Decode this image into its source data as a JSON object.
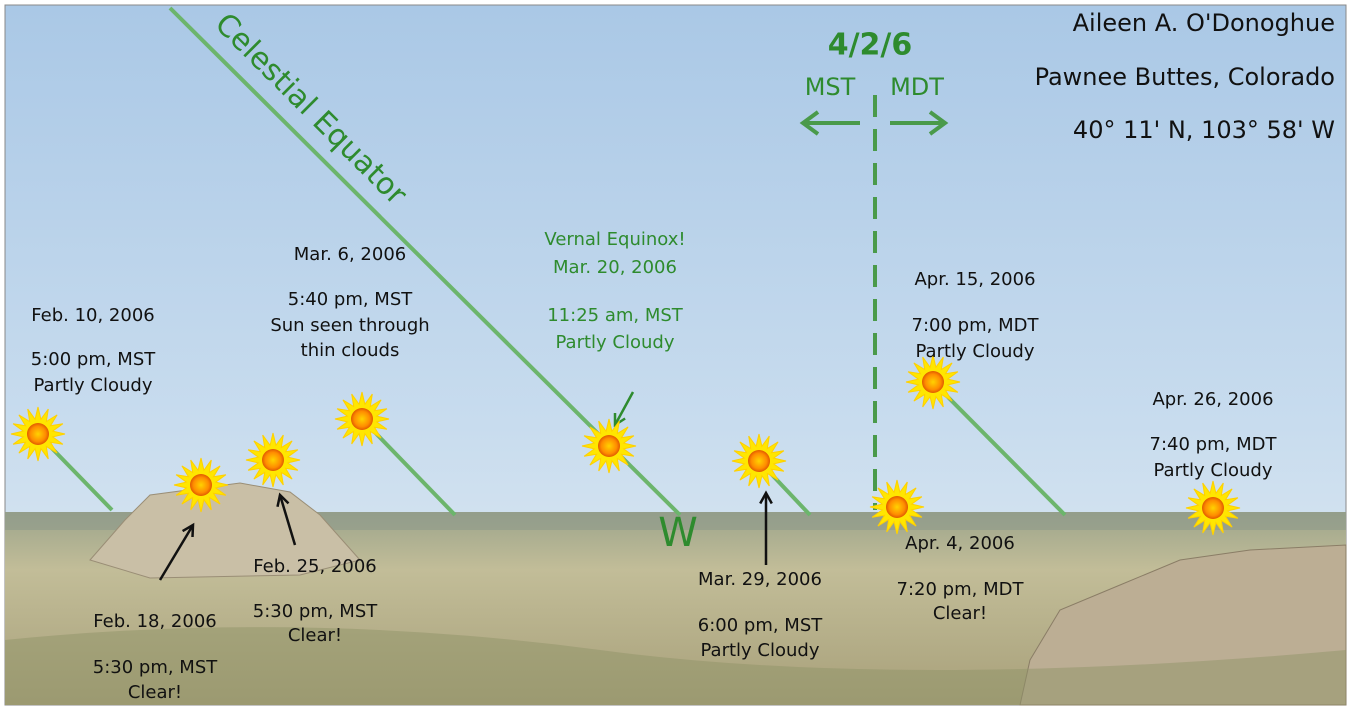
{
  "header": {
    "author": "Aileen A. O'Donoghue",
    "location": "Pawnee Buttes, Colorado",
    "coordinates": "40° 11' N, 103° 58' W"
  },
  "equator_label": "Celestial Equator",
  "divider": {
    "date": "4/2/6",
    "left": "MST",
    "right": "MDT"
  },
  "west_label": "W",
  "observations": [
    {
      "lines": [
        "Feb. 10, 2006",
        "5:00 pm, MST",
        "Partly Cloudy"
      ]
    },
    {
      "lines": [
        "Feb. 18, 2006",
        "5:30 pm, MST",
        "Clear!"
      ]
    },
    {
      "lines": [
        "Feb. 25, 2006",
        "5:30 pm, MST",
        "Clear!"
      ]
    },
    {
      "lines": [
        "Mar. 6, 2006",
        "5:40 pm, MST",
        "Sun seen through",
        "thin clouds"
      ]
    },
    {
      "lines": [
        "Vernal Equinox!",
        "Mar. 20, 2006",
        "11:25 am, MST",
        "Partly Cloudy"
      ]
    },
    {
      "lines": [
        "Mar. 29, 2006",
        "6:00 pm, MST",
        "Partly Cloudy"
      ]
    },
    {
      "lines": [
        "Apr. 4, 2006",
        "7:20 pm, MDT",
        "Clear!"
      ]
    },
    {
      "lines": [
        "Apr. 15, 2006",
        "7:00 pm, MDT",
        "Partly Cloudy"
      ]
    },
    {
      "lines": [
        "Apr. 26, 2006",
        "7:40 pm, MDT",
        "Partly Cloudy"
      ]
    }
  ]
}
